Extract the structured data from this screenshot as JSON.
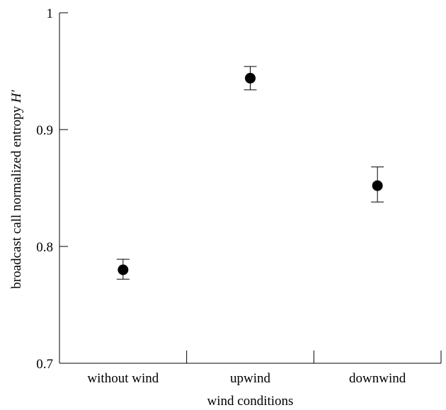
{
  "chart_data": {
    "type": "scatter",
    "categories": [
      "without wind",
      "upwind",
      "downwind"
    ],
    "values": [
      0.78,
      0.944,
      0.852
    ],
    "error_low": [
      0.772,
      0.934,
      0.838
    ],
    "error_high": [
      0.789,
      0.954,
      0.868
    ],
    "xlabel": "wind conditions",
    "ylabel_main": "broadcast call normalized entropy ",
    "ylabel_symbol": "H′",
    "ylim": [
      0.7,
      1.0
    ],
    "yticks": [
      0.7,
      0.8,
      0.9,
      1.0
    ],
    "ytick_labels": [
      "0.7",
      "0.8",
      "0.9",
      "1"
    ],
    "grid": false,
    "legend": "none",
    "marker_color": "#000000"
  }
}
